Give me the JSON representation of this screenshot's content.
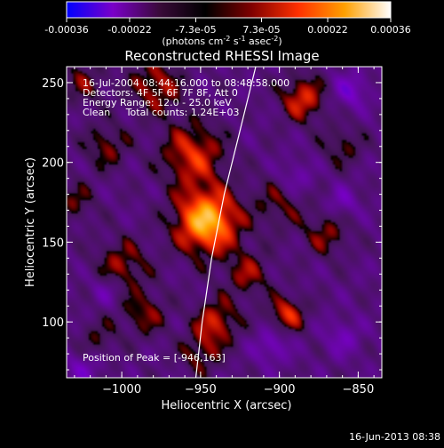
{
  "colorbar": {
    "ticks": [
      {
        "value": -0.00036,
        "label": "-0.00036"
      },
      {
        "value": -0.00022,
        "label": "-0.00022"
      },
      {
        "value": -7.3e-05,
        "label": "-7.3e-05"
      },
      {
        "value": 7.3e-05,
        "label": "7.3e-05"
      },
      {
        "value": 0.00022,
        "label": "0.00022"
      },
      {
        "value": 0.00036,
        "label": "0.00036"
      }
    ],
    "range": [
      -0.00036,
      0.00036
    ],
    "units": "(photons cm",
    "units_sup1": "-2",
    "units_mid": " s",
    "units_sup2": "-1",
    "units_end": " asec",
    "units_sup3": "-2",
    "units_close": ")",
    "colors": [
      "#0000ff",
      "#7a00c8",
      "#3a0a3a",
      "#000000",
      "#800000",
      "#ff3000",
      "#ffa000",
      "#ffffff"
    ]
  },
  "chart_data": {
    "type": "heatmap",
    "title": "Reconstructed RHESSI Image",
    "xlabel": "Heliocentric X (arcsec)",
    "ylabel": "Heliocentric Y (arcsec)",
    "xlim": [
      -1035,
      -835
    ],
    "ylim": [
      65,
      260
    ],
    "x_ticks": [
      {
        "value": -1000,
        "label": "−1000"
      },
      {
        "value": -950,
        "label": "−950"
      },
      {
        "value": -900,
        "label": "−900"
      },
      {
        "value": -850,
        "label": "−850"
      }
    ],
    "y_ticks": [
      {
        "value": 100,
        "label": "100"
      },
      {
        "value": 150,
        "label": "150"
      },
      {
        "value": 200,
        "label": "200"
      },
      {
        "value": 250,
        "label": "250"
      }
    ],
    "peak": {
      "x": -946,
      "y": 163
    },
    "sources": [
      {
        "x": -946,
        "y": 163,
        "amp": 1.0,
        "s": 14
      },
      {
        "x": -955,
        "y": 205,
        "amp": 0.55,
        "s": 14
      },
      {
        "x": -978,
        "y": 248,
        "amp": 0.45,
        "s": 12
      },
      {
        "x": -1010,
        "y": 210,
        "amp": 0.35,
        "s": 10
      },
      {
        "x": -1025,
        "y": 250,
        "amp": 0.3,
        "s": 10
      },
      {
        "x": -1000,
        "y": 135,
        "amp": 0.4,
        "s": 12
      },
      {
        "x": -985,
        "y": 105,
        "amp": 0.35,
        "s": 10
      },
      {
        "x": -940,
        "y": 100,
        "amp": 0.5,
        "s": 10
      },
      {
        "x": -950,
        "y": 80,
        "amp": 0.35,
        "s": 9
      },
      {
        "x": -920,
        "y": 130,
        "amp": 0.38,
        "s": 10
      },
      {
        "x": -900,
        "y": 175,
        "amp": 0.3,
        "s": 12
      },
      {
        "x": -885,
        "y": 240,
        "amp": 0.55,
        "s": 10
      },
      {
        "x": -860,
        "y": 210,
        "amp": 0.3,
        "s": 9
      },
      {
        "x": -870,
        "y": 155,
        "amp": 0.35,
        "s": 10
      },
      {
        "x": -895,
        "y": 105,
        "amp": 0.55,
        "s": 8
      },
      {
        "x": -1030,
        "y": 175,
        "amp": 0.3,
        "s": 9
      },
      {
        "x": -1015,
        "y": 90,
        "amp": 0.25,
        "s": 9
      },
      {
        "x": -855,
        "y": 245,
        "amp": -0.4,
        "s": 8
      },
      {
        "x": -860,
        "y": 90,
        "amp": -0.3,
        "s": 8
      },
      {
        "x": -905,
        "y": 85,
        "amp": -0.35,
        "s": 8
      },
      {
        "x": -890,
        "y": 190,
        "amp": -0.3,
        "s": 8
      },
      {
        "x": -1010,
        "y": 120,
        "amp": -0.3,
        "s": 7
      },
      {
        "x": -1025,
        "y": 70,
        "amp": -0.3,
        "s": 8
      },
      {
        "x": -860,
        "y": 175,
        "amp": -0.3,
        "s": 7
      }
    ],
    "limb": [
      [
        -915,
        260
      ],
      [
        -925,
        220
      ],
      [
        -935,
        180
      ],
      [
        -943,
        140
      ],
      [
        -949,
        100
      ],
      [
        -953,
        65
      ]
    ]
  },
  "annotations": {
    "line1": "16-Jul-2004 08:44:16.000 to 08:48:58.000",
    "line2": "Detectors: 4F 5F 6F 7F 8F, Att 0",
    "line3": "Energy Range: 12.0 - 25.0 keV",
    "line4": "Clean     Total counts: 1.24E+03",
    "peak_label": "Position of Peak = [-946,163]"
  },
  "footer": {
    "timestamp": "16-Jun-2013 08:38"
  }
}
